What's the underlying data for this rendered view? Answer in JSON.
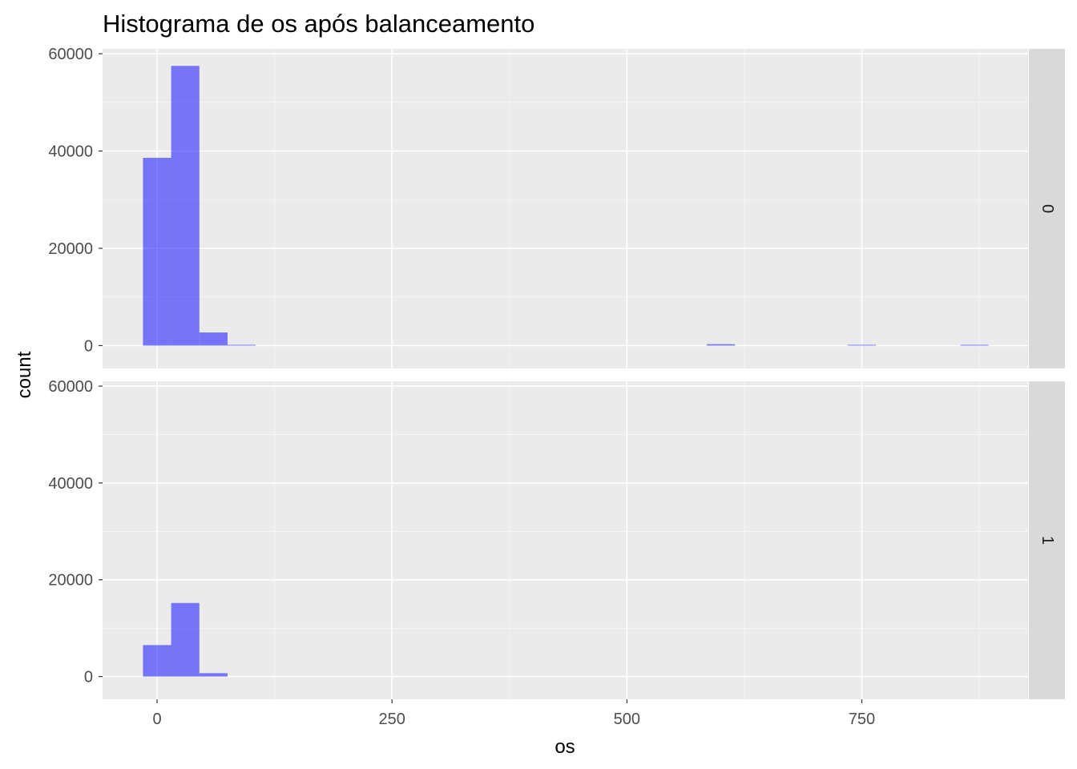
{
  "chart_data": {
    "type": "bar",
    "title": "Histograma de os após balanceamento",
    "xlabel": "os",
    "ylabel": "count",
    "xlim": [
      -58,
      927
    ],
    "ylim": [
      -4700,
      61000
    ],
    "x_ticks": [
      0,
      250,
      500,
      750
    ],
    "y_ticks": [
      0,
      20000,
      40000,
      60000
    ],
    "bin_width": 30,
    "bar_color": "#0000ff",
    "bar_opacity": 0.5,
    "panel_bg": "#ebebeb",
    "grid_color": "#ffffff",
    "strip_bg": "#d9d9d9",
    "grid": true,
    "facets": [
      {
        "label": "0",
        "bins": [
          {
            "x": 0,
            "count": 38600
          },
          {
            "x": 30,
            "count": 57500
          },
          {
            "x": 60,
            "count": 2700
          },
          {
            "x": 90,
            "count": 150
          },
          {
            "x": 600,
            "count": 300
          },
          {
            "x": 750,
            "count": 100
          },
          {
            "x": 870,
            "count": 100
          }
        ]
      },
      {
        "label": "1",
        "bins": [
          {
            "x": 0,
            "count": 6500
          },
          {
            "x": 30,
            "count": 15200
          },
          {
            "x": 60,
            "count": 700
          }
        ]
      }
    ]
  }
}
